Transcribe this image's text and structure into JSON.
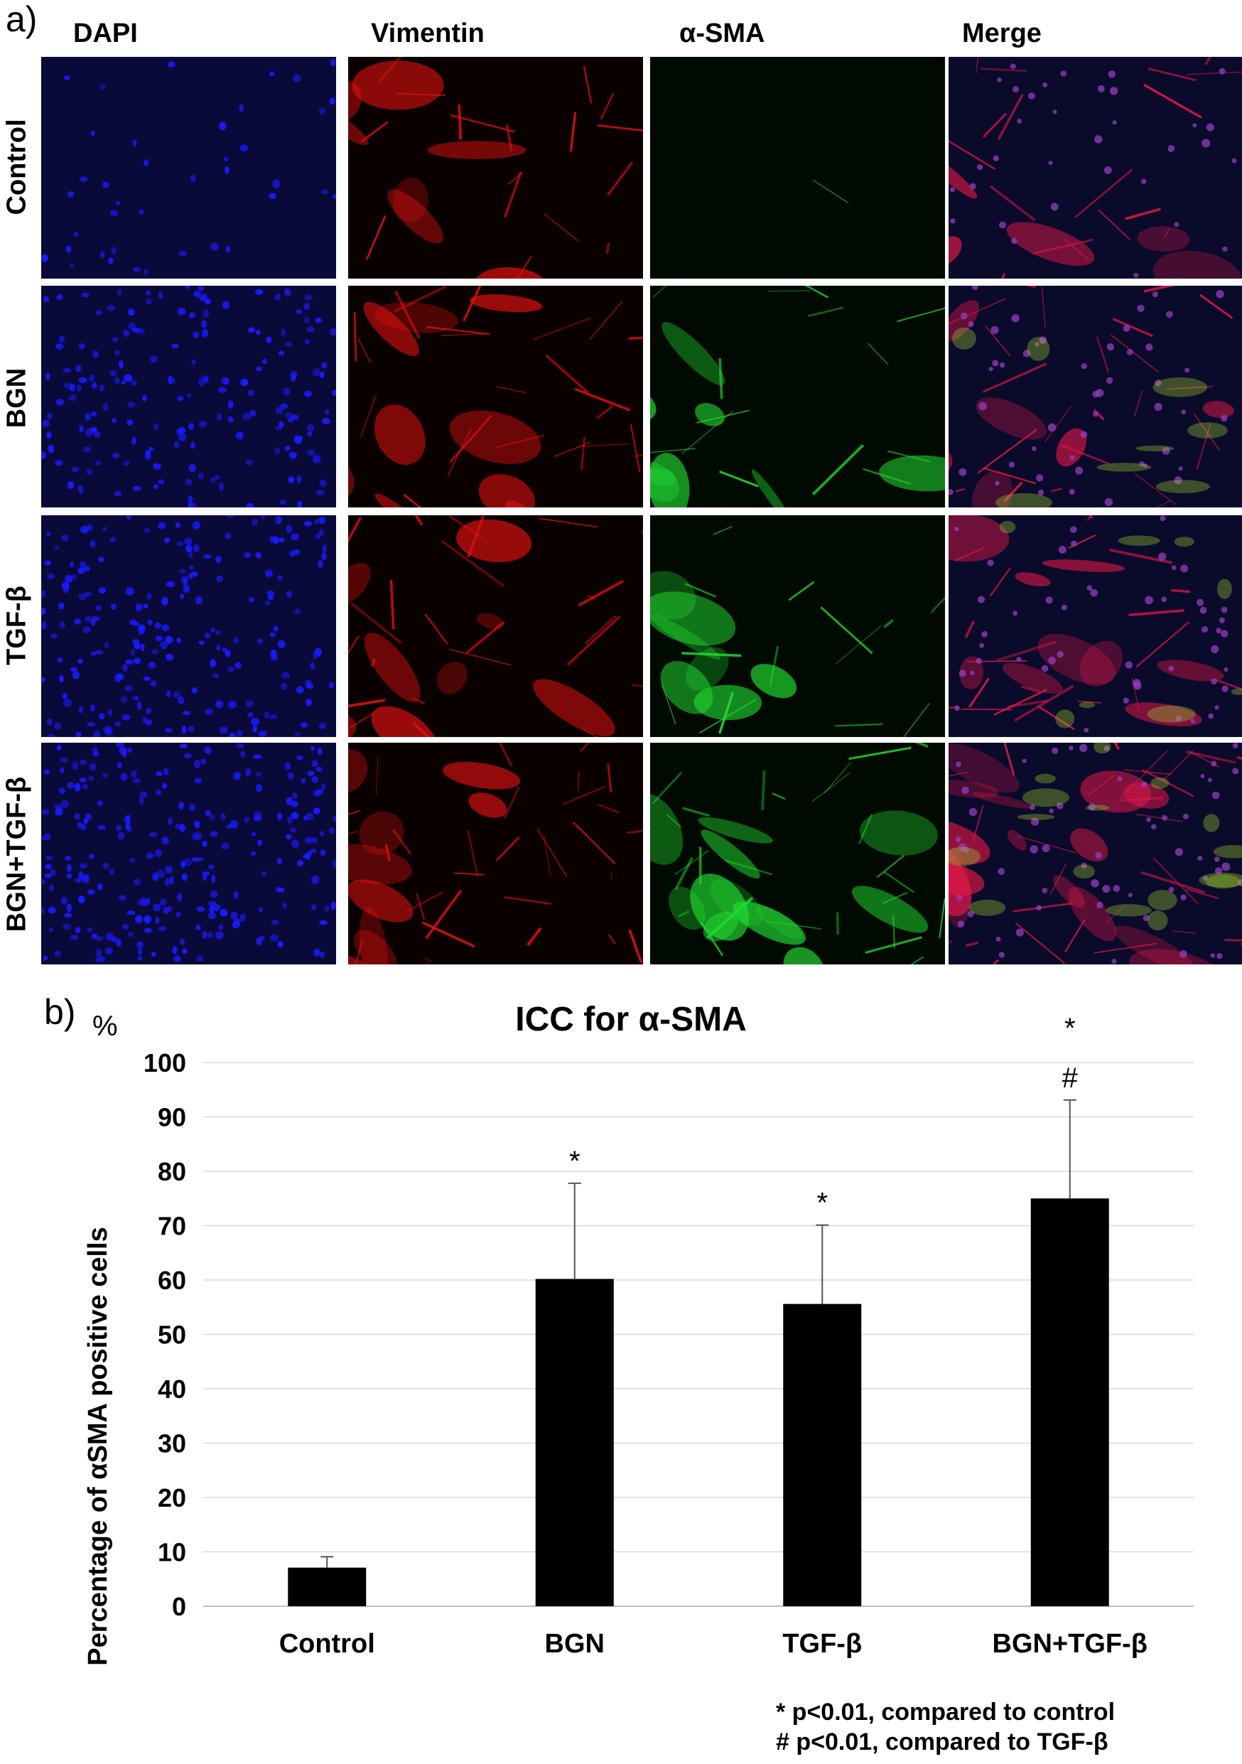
{
  "panel_a": {
    "label": "a)",
    "columns": [
      "DAPI",
      "Vimentin",
      "α-SMA",
      "Merge"
    ],
    "rows": [
      "Control",
      "BGN",
      "TGF-β",
      "BGN+TGF-β"
    ],
    "channel_colors": {
      "DAPI": "#1a1aff",
      "Vimentin": "#e01010",
      "α-SMA": "#22dd33",
      "Merge": "#e01848"
    },
    "background_colors": {
      "DAPI": "#0a0a3a",
      "Vimentin": "#0a0000",
      "α-SMA": "#000a00",
      "Merge": "#0a0a2a"
    },
    "signal_level": {
      "DAPI": [
        0.15,
        0.7,
        0.8,
        0.95
      ],
      "Vimentin": [
        0.55,
        0.8,
        0.8,
        1.0
      ],
      "α-SMA": [
        0.02,
        0.45,
        0.45,
        0.9
      ],
      "Merge": [
        0.55,
        0.8,
        0.8,
        1.0
      ]
    }
  },
  "panel_b": {
    "label": "b)",
    "unit_label": "%",
    "footnotes": [
      "* p<0.01, compared to control",
      "# p<0.01, compared to TGF-β"
    ]
  },
  "chart_data": {
    "type": "bar",
    "title": "ICC for α-SMA",
    "xlabel": "",
    "ylabel": "Percentage of αSMA positive cells",
    "categories": [
      "Control",
      "BGN",
      "TGF-β",
      "BGN+TGF-β"
    ],
    "values": [
      7.1,
      60.2,
      55.6,
      75.0
    ],
    "error_upper": [
      9.1,
      77.8,
      70.1,
      93.1
    ],
    "significance": [
      "",
      "*",
      "*",
      "*\n#"
    ],
    "ylim": [
      0,
      100
    ],
    "yticks": [
      0,
      10,
      20,
      30,
      40,
      50,
      60,
      70,
      80,
      90,
      100
    ],
    "grid": true,
    "bar_color": "#000000",
    "grid_color": "#d9d9d9"
  }
}
